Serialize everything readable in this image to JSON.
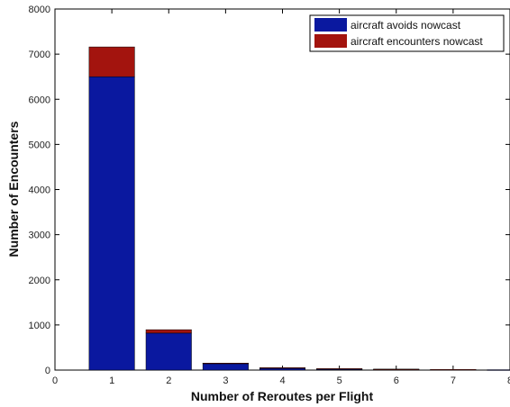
{
  "chart_data": {
    "type": "bar",
    "stacked": true,
    "title": "",
    "xlabel": "Number of Reroutes per Flight",
    "ylabel": "Number of Encounters",
    "x": [
      1,
      2,
      3,
      4,
      5,
      6,
      7,
      8
    ],
    "series": [
      {
        "name": "aircraft avoids nowcast",
        "color": "#0A189F",
        "values": [
          6500,
          820,
          150,
          50,
          30,
          20,
          12,
          8
        ]
      },
      {
        "name": "aircraft encounters nowcast",
        "color": "#A3140E",
        "values": [
          660,
          75,
          5,
          3,
          2,
          1,
          1,
          0
        ]
      }
    ],
    "xlim": [
      0,
      8
    ],
    "ylim": [
      0,
      8000
    ],
    "xticks": [
      "0",
      "1",
      "2",
      "3",
      "4",
      "5",
      "6",
      "7",
      "8"
    ],
    "yticks": [
      "0",
      "1000",
      "2000",
      "3000",
      "4000",
      "5000",
      "6000",
      "7000",
      "8000"
    ],
    "grid": false,
    "legend_position": "top-right"
  }
}
